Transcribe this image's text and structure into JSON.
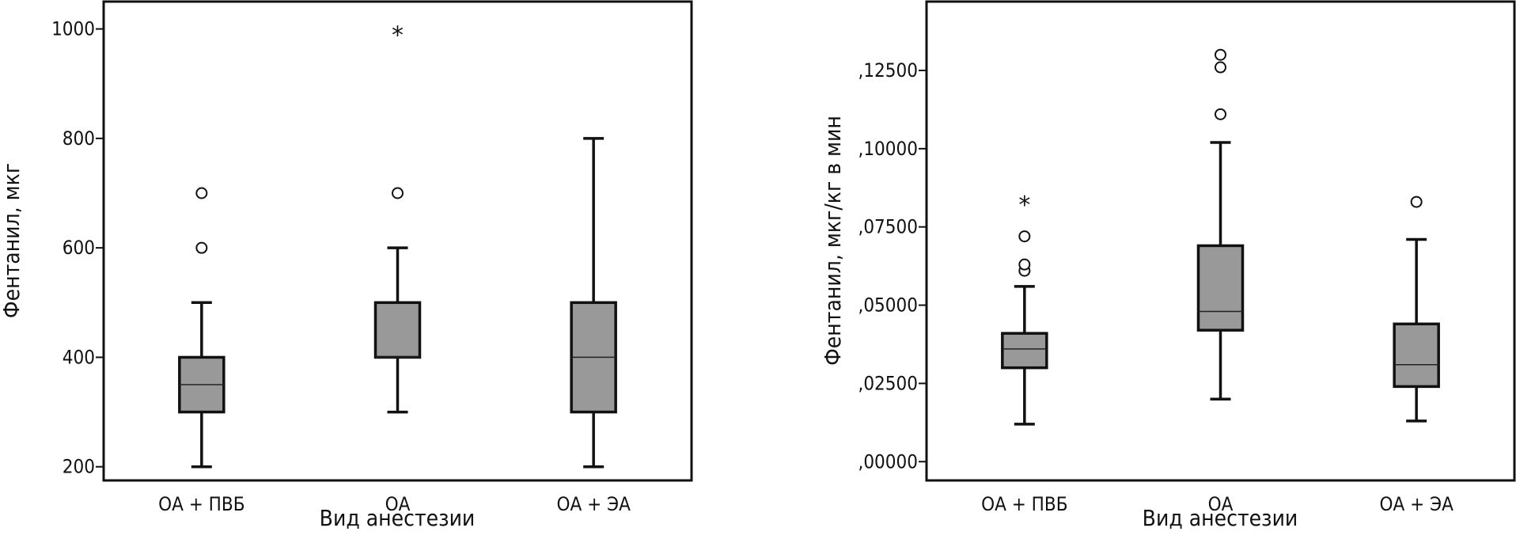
{
  "chart_data": [
    {
      "type": "boxplot",
      "xlabel": "Вид анестезии",
      "ylabel": "Фентанил, мкг",
      "ylim": [
        175,
        1050
      ],
      "yticks": [
        200,
        400,
        600,
        800,
        1000
      ],
      "ytick_labels": [
        "200",
        "400",
        "600",
        "800",
        "1000"
      ],
      "categories": [
        "ОА + ПВБ",
        "ОА",
        "ОА + ЭА"
      ],
      "box_color": "#999999",
      "boxes": [
        {
          "category": "ОА + ПВБ",
          "whisker_low": 200,
          "q1": 300,
          "median": 350,
          "q3": 400,
          "whisker_high": 500,
          "outliers": [
            600,
            700
          ],
          "extremes": []
        },
        {
          "category": "ОА",
          "whisker_low": 300,
          "q1": 400,
          "median": 400,
          "q3": 500,
          "whisker_high": 600,
          "outliers": [
            700
          ],
          "extremes": [
            1000
          ]
        },
        {
          "category": "ОА + ЭА",
          "whisker_low": 200,
          "q1": 300,
          "median": 400,
          "q3": 500,
          "whisker_high": 800,
          "outliers": [],
          "extremes": []
        }
      ]
    },
    {
      "type": "boxplot",
      "xlabel": "Вид анестезии",
      "ylabel": "Фентанил, мкг/кг в мин",
      "ylim": [
        -0.006,
        0.147
      ],
      "yticks": [
        0,
        0.025,
        0.05,
        0.075,
        0.1,
        0.125
      ],
      "ytick_labels": [
        ",00000",
        ",02500",
        ",05000",
        ",07500",
        ",10000",
        ",12500"
      ],
      "categories": [
        "ОА + ПВБ",
        "ОА",
        "ОА + ЭА"
      ],
      "box_color": "#999999",
      "boxes": [
        {
          "category": "ОА + ПВБ",
          "whisker_low": 0.012,
          "q1": 0.03,
          "median": 0.036,
          "q3": 0.041,
          "whisker_high": 0.056,
          "outliers": [
            0.061,
            0.063,
            0.072
          ],
          "extremes": [
            0.084
          ]
        },
        {
          "category": "ОА",
          "whisker_low": 0.02,
          "q1": 0.042,
          "median": 0.048,
          "q3": 0.069,
          "whisker_high": 0.102,
          "outliers": [
            0.111,
            0.126,
            0.13
          ],
          "extremes": []
        },
        {
          "category": "ОА + ЭА",
          "whisker_low": 0.013,
          "q1": 0.024,
          "median": 0.031,
          "q3": 0.044,
          "whisker_high": 0.071,
          "outliers": [
            0.083
          ],
          "extremes": []
        }
      ]
    }
  ]
}
